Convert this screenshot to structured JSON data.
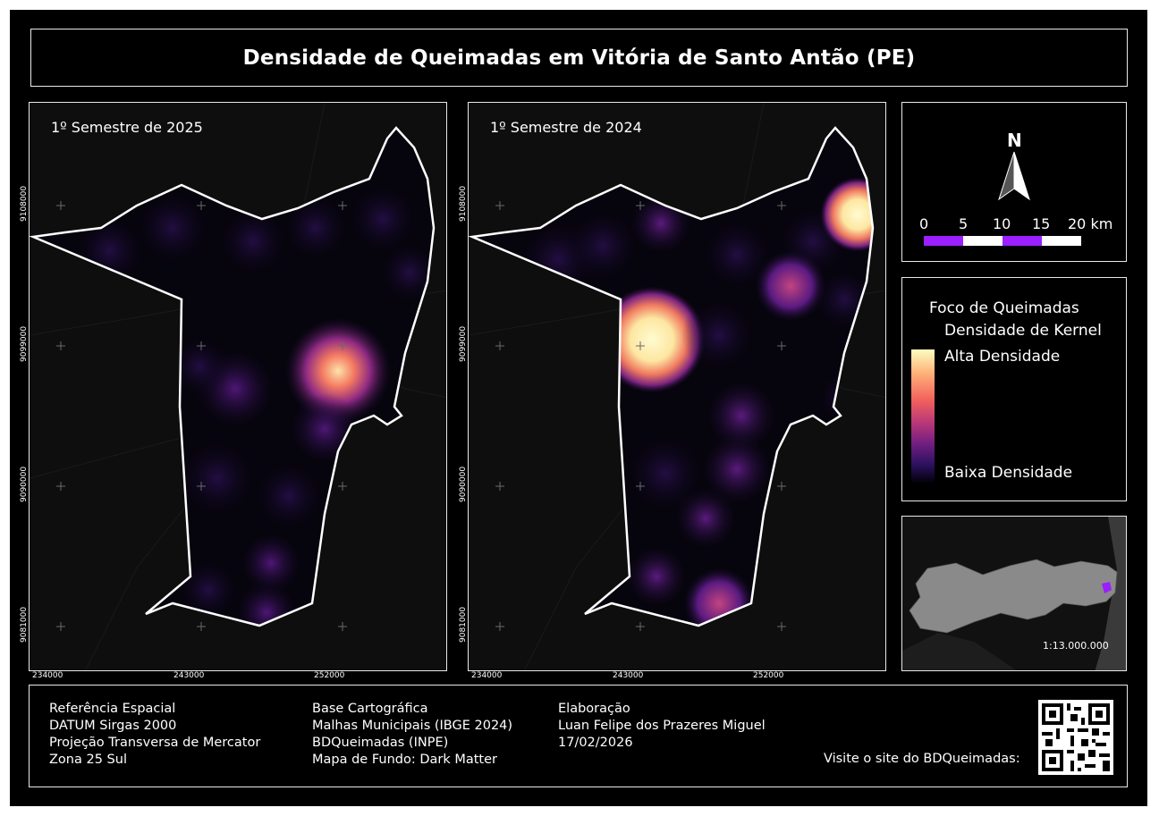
{
  "title": "Densidade de Queimadas em Vitória de Santo Antão (PE)",
  "maps": [
    {
      "label": "1º Semestre de 2025"
    },
    {
      "label": "1º Semestre de 2024"
    }
  ],
  "grid": {
    "y_ticks": [
      "9108000",
      "9099000",
      "9090000",
      "9081000"
    ],
    "x_ticks": [
      "234000",
      "243000",
      "252000"
    ]
  },
  "north": {
    "letter": "N"
  },
  "scalebar": {
    "labels": [
      "0",
      "5",
      "10",
      "15",
      "20 km"
    ],
    "colors": [
      "#9b1fff",
      "#ffffff"
    ]
  },
  "legend": {
    "title": "Foco de Queimadas",
    "subtitle": "Densidade de Kernel",
    "high": "Alta Densidade",
    "low": "Baixa Densidade"
  },
  "inset": {
    "scale": "1:13.000.000",
    "highlight_color": "#9b1fff"
  },
  "footer": {
    "col1": [
      "Referência Espacial",
      "DATUM Sirgas 2000",
      "Projeção Transversa de Mercator",
      "Zona 25 Sul"
    ],
    "col2": [
      "Base Cartográfica",
      "Malhas Municipais (IBGE 2024)",
      "BDQueimadas (INPE)",
      "Mapa de Fundo: Dark Matter"
    ],
    "col3": [
      "Elaboração",
      "Luan Felipe dos Prazeres Miguel",
      "17/02/2026"
    ],
    "visit": "Visite o site do BDQueimadas:"
  }
}
